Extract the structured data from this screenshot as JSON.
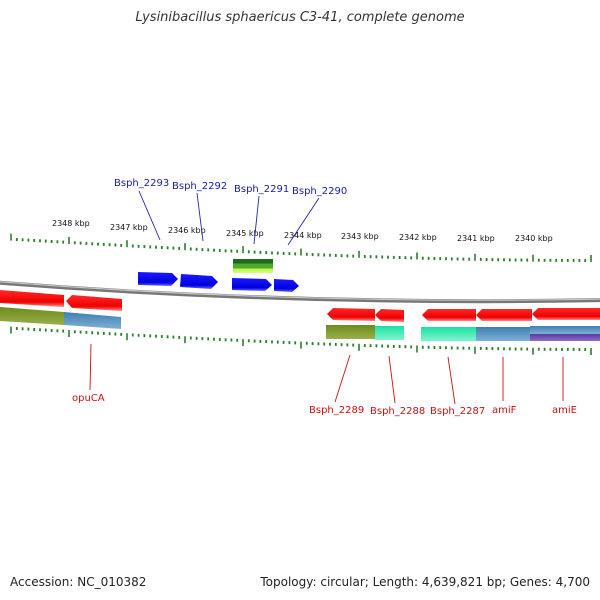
{
  "title": "Lysinibacillus sphaericus C3-41, complete genome",
  "footer": {
    "accession": "Accession: NC_010382",
    "summary": "Topology: circular; Length: 4,639,821 bp; Genes: 4,700"
  },
  "ruler": {
    "labels": [
      "2348 kbp",
      "2347 kbp",
      "2346 kbp",
      "2345 kbp",
      "2344 kbp",
      "2343 kbp",
      "2342 kbp",
      "2341 kbp",
      "2340 kbp"
    ]
  },
  "colors": {
    "forward_gene": "#0000ee",
    "reverse_gene": "#ee0000",
    "forward_label": "#1a1aa8",
    "reverse_label": "#cc1111",
    "tick": "#2e7d2e",
    "backbone": "#888888"
  },
  "genes_top": [
    {
      "label": "Bsph_2293"
    },
    {
      "label": "Bsph_2292"
    },
    {
      "label": "Bsph_2291"
    },
    {
      "label": "Bsph_2290"
    }
  ],
  "genes_bottom": [
    {
      "label": "opuCA"
    },
    {
      "label": "Bsph_2289"
    },
    {
      "label": "Bsph_2288"
    },
    {
      "label": "Bsph_2287"
    },
    {
      "label": "amiF"
    },
    {
      "label": "amiE"
    }
  ]
}
